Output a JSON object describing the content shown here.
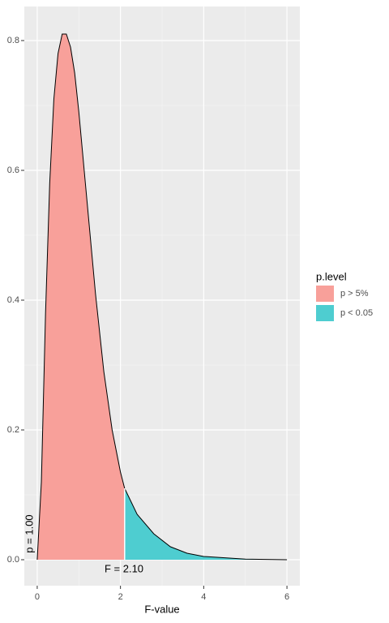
{
  "chart_data": {
    "type": "area",
    "xlabel": "F-value",
    "legend_title": "p.level",
    "legend": "right",
    "grid": true,
    "annotations": [
      "F = 2.10",
      "p = 1.00"
    ],
    "series": [
      {
        "name": "p > 5%",
        "color": "#f8a09a",
        "x": [
          0,
          0.1,
          0.2,
          0.3,
          0.4,
          0.5,
          0.6,
          0.7,
          0.8,
          0.9,
          1.0,
          1.2,
          1.4,
          1.6,
          1.8,
          2.0,
          2.1
        ],
        "values": [
          0,
          0.12,
          0.38,
          0.58,
          0.71,
          0.78,
          0.81,
          0.81,
          0.79,
          0.75,
          0.69,
          0.55,
          0.41,
          0.29,
          0.2,
          0.135,
          0.11
        ]
      },
      {
        "name": "p < 0.05",
        "color": "#4ecdd0",
        "x": [
          2.1,
          2.4,
          2.8,
          3.2,
          3.6,
          4.0,
          5.0,
          6.0
        ],
        "values": [
          0.11,
          0.07,
          0.04,
          0.02,
          0.01,
          0.005,
          0.001,
          0
        ]
      }
    ],
    "xlim": [
      -0.31,
      6.31
    ],
    "xticks": [
      0,
      2,
      4,
      6
    ],
    "ylim": [
      -0.04,
      0.8525
    ],
    "yticks": [
      0.0,
      0.2,
      0.4,
      0.6,
      0.8
    ]
  }
}
